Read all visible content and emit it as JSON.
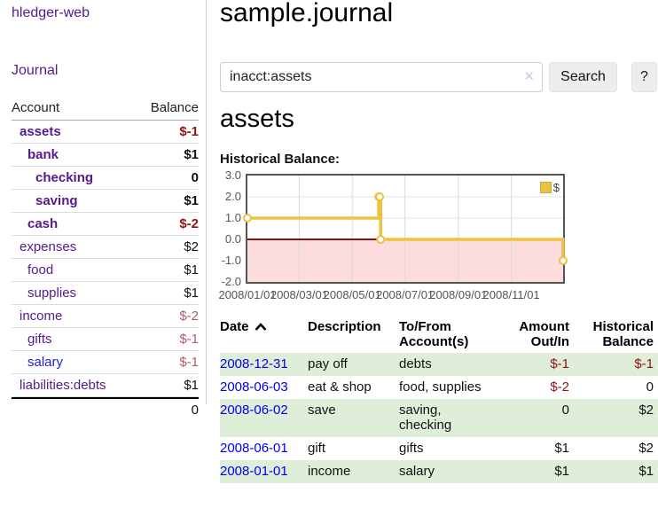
{
  "sidebar": {
    "brand": "hledger-web",
    "nav": {
      "journal": "Journal"
    },
    "table": {
      "account_header": "Account",
      "balance_header": "Balance"
    },
    "accounts": [
      {
        "name": "assets",
        "balance": "$-1"
      },
      {
        "name": "bank",
        "balance": "$1"
      },
      {
        "name": "checking",
        "balance": "0"
      },
      {
        "name": "saving",
        "balance": "$1"
      },
      {
        "name": "cash",
        "balance": "$-2"
      },
      {
        "name": "expenses",
        "balance": "$2"
      },
      {
        "name": "food",
        "balance": "$1"
      },
      {
        "name": "supplies",
        "balance": "$1"
      },
      {
        "name": "income",
        "balance": "$-2"
      },
      {
        "name": "gifts",
        "balance": "$-1"
      },
      {
        "name": "salary",
        "balance": "$-1"
      },
      {
        "name": "liabilities:debts",
        "balance": "$1"
      }
    ],
    "total": "0"
  },
  "header": {
    "title": "sample.journal"
  },
  "search": {
    "query": "inacct:assets",
    "clear_icon": "✕",
    "button": "Search",
    "help_button": "?"
  },
  "account_page": {
    "heading": "assets",
    "chart_label": "Historical Balance:"
  },
  "chart_data": {
    "type": "line",
    "step": true,
    "title": "Historical Balance:",
    "ylim": [
      -2,
      3
    ],
    "yticks": [
      {
        "v": 3,
        "label": "3.0"
      },
      {
        "v": 2,
        "label": "2.0"
      },
      {
        "v": 1,
        "label": "1.0"
      },
      {
        "v": 0,
        "label": "0.0"
      },
      {
        "v": -1,
        "label": "-1.0"
      },
      {
        "v": -2,
        "label": "-2.0"
      }
    ],
    "ygrid": [
      2,
      1,
      -1
    ],
    "xgrid": [
      0.164,
      0.332,
      0.499,
      0.668,
      0.836
    ],
    "xticks": [
      {
        "x": 0,
        "label": "2008/01/01"
      },
      {
        "x": 0.164,
        "label": "2008/03/01"
      },
      {
        "x": 0.332,
        "label": "2008/05/01"
      },
      {
        "x": 0.499,
        "label": "2008/07/01"
      },
      {
        "x": 0.668,
        "label": "2008/09/01"
      },
      {
        "x": 0.836,
        "label": "2008/11/01"
      }
    ],
    "series": [
      {
        "name": "$",
        "color": "#edc240",
        "points": [
          {
            "date": "2008-01-01",
            "x": 0.0,
            "y": 1
          },
          {
            "date": "2008-06-01",
            "x": 0.416,
            "y": 2
          },
          {
            "date": "2008-06-02",
            "x": 0.419,
            "y": 2
          },
          {
            "date": "2008-06-03",
            "x": 0.422,
            "y": 0
          },
          {
            "date": "2008-12-31",
            "x": 1.0,
            "y": -1
          }
        ]
      }
    ],
    "legend": {
      "label": "$",
      "position": "top-right"
    },
    "zero_line_color": "#8b1212",
    "negative_fill": "#fcdcdc",
    "grid": true
  },
  "register": {
    "headers": {
      "date": "Date",
      "description": "Description",
      "tofrom_l1": "To/From",
      "tofrom_l2": "Account(s)",
      "amount_l1": "Amount",
      "amount_l2": "Out/In",
      "balance_l1": "Historical",
      "balance_l2": "Balance"
    },
    "rows": [
      {
        "date": "2008-12-31",
        "description": "pay off",
        "accounts": "debts",
        "amount": "$-1",
        "balance": "$-1"
      },
      {
        "date": "2008-06-03",
        "description": "eat & shop",
        "accounts": "food, supplies",
        "amount": "$-2",
        "balance": "0"
      },
      {
        "date": "2008-06-02",
        "description": "save",
        "accounts": "saving, checking",
        "amount": "0",
        "balance": "$2"
      },
      {
        "date": "2008-06-01",
        "description": "gift",
        "accounts": "gifts",
        "amount": "$1",
        "balance": "$2"
      },
      {
        "date": "2008-01-01",
        "description": "income",
        "accounts": "salary",
        "amount": "$1",
        "balance": "$1"
      }
    ]
  },
  "colors": {
    "accent_purple": "#551a8b",
    "link_blue": "#0000ee",
    "date_blue": "#0000ee",
    "negative": "#8e1414",
    "negative_muted": "#b25d62",
    "row_stripe_green": "#dfeed8",
    "series_yellow": "#edc240",
    "zero_line": "#8b1212",
    "negative_fill": "#fcdcdc"
  }
}
